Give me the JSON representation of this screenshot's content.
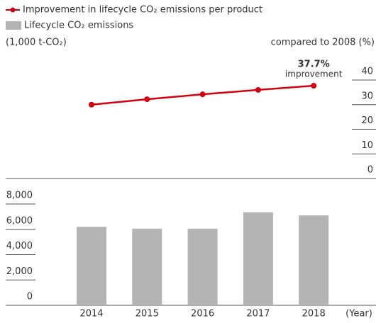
{
  "chart_data": [
    {
      "type": "line",
      "y_label": "compared to 2008 (%)",
      "series": [
        {
          "name": "Improvement in lifecycle CO₂ emissions per product",
          "color": "#d7000f",
          "values": [
            30,
            32.2,
            34.2,
            36,
            37.7
          ],
          "value_labels": [
            null,
            null,
            null,
            null,
            "37.7%"
          ]
        }
      ],
      "annotation": "improvement",
      "ylim": [
        0,
        40
      ],
      "yticks": [
        0,
        10,
        20,
        30,
        40
      ]
    },
    {
      "type": "bar",
      "y_label": "(1,000 t-CO₂)",
      "x_label": "(Year)",
      "categories": [
        "2014",
        "2015",
        "2016",
        "2017",
        "2018"
      ],
      "series": [
        {
          "name": "Lifecycle CO₂ emissions",
          "color": "#b4b4b4",
          "values": [
            6200,
            6050,
            6050,
            7350,
            7100
          ]
        }
      ],
      "ylim": [
        0,
        8000
      ],
      "yticks": [
        0,
        {
          "value": 2000,
          "label": "2,000"
        },
        {
          "value": 4000,
          "label": "4,000"
        },
        {
          "value": 6000,
          "label": "6,000"
        },
        {
          "value": 8000,
          "label": "8,000"
        }
      ]
    }
  ]
}
